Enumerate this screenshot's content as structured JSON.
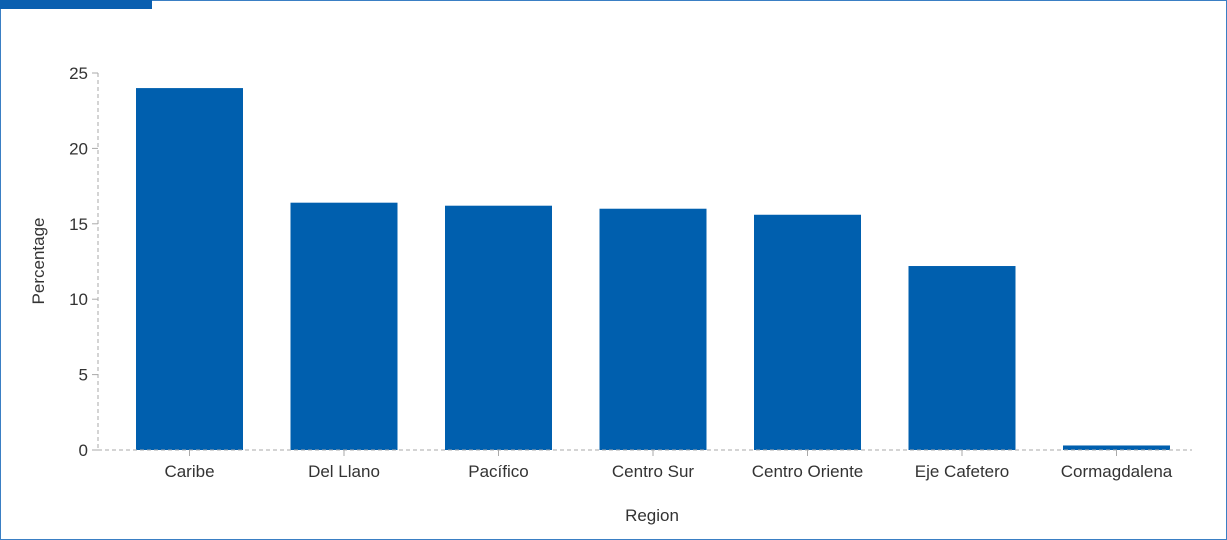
{
  "colors": {
    "bar": "#005fae",
    "frame_border": "#3a7fc4",
    "accent_tab": "#0a5fb0",
    "axis_line": "#aaaaaa",
    "text": "#333333"
  },
  "chart_data": {
    "type": "bar",
    "title": "",
    "xlabel": "Region",
    "ylabel": "Percentage",
    "categories": [
      "Caribe",
      "Del Llano",
      "Pacífico",
      "Centro Sur",
      "Centro Oriente",
      "Eje Cafetero",
      "Cormagdalena"
    ],
    "values": [
      24.0,
      16.4,
      16.2,
      16.0,
      15.6,
      12.2,
      0.3
    ],
    "ylim": [
      0,
      25
    ],
    "yticks": [
      0,
      5,
      10,
      15,
      20,
      25
    ],
    "grid": false,
    "legend": "none"
  }
}
